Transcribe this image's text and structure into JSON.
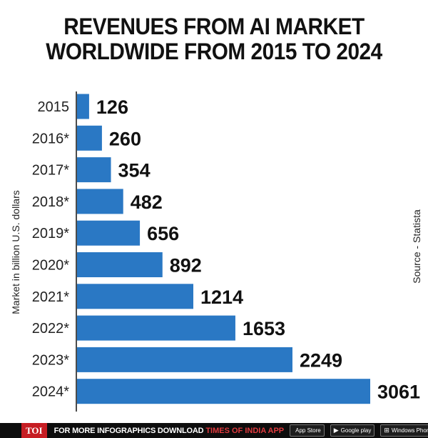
{
  "title_lines": [
    "REVENUES FROM AI MARKET",
    "WORLDWIDE FROM 2015 TO 2024"
  ],
  "ylabel": "Market in billion U.S. dollars",
  "source": "Source - Statista",
  "colors": {
    "bar": "#2a78c4",
    "text": "#111111",
    "axis": "#111111"
  },
  "chart_data": {
    "type": "bar",
    "orientation": "horizontal",
    "title": "REVENUES FROM AI MARKET WORLDWIDE FROM 2015 TO 2024",
    "ylabel": "Market in billion U.S. dollars",
    "categories": [
      "2015",
      "2016*",
      "2017*",
      "2018*",
      "2019*",
      "2020*",
      "2021*",
      "2022*",
      "2023*",
      "2024*"
    ],
    "values": [
      126,
      260,
      354,
      482,
      656,
      892,
      1214,
      1653,
      2249,
      3061
    ],
    "xlim": [
      0,
      3061
    ],
    "grid": false,
    "legend": "none"
  },
  "footer": {
    "badge": "TOI",
    "text": "FOR MORE  INFOGRAPHICS DOWNLOAD",
    "brand": "TIMES OF INDIA  APP",
    "stores": [
      {
        "icon": "apple-icon",
        "glyph": "",
        "label": "App Store"
      },
      {
        "icon": "google-play-icon",
        "glyph": "▶",
        "label": "Google play"
      },
      {
        "icon": "windows-icon",
        "glyph": "⊞",
        "label": "Windows Phone"
      }
    ]
  }
}
